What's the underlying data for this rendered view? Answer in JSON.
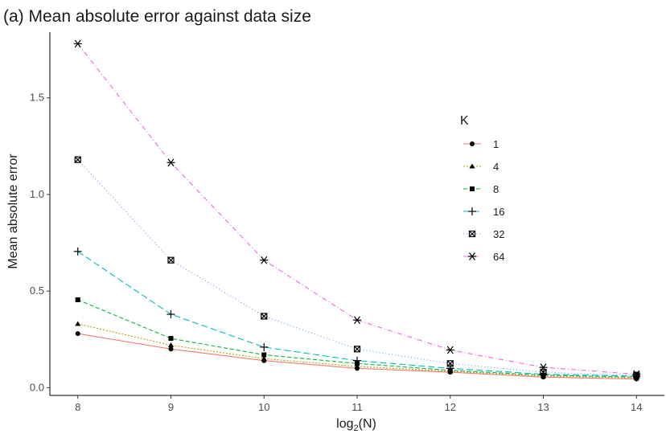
{
  "chart_data": {
    "type": "line",
    "title": "(a) Mean absolute error against data size",
    "xlabel_main": "log",
    "xlabel_sub": "2",
    "xlabel_rest": "(N)",
    "ylabel": "Mean absolute error",
    "x": [
      8,
      9,
      10,
      11,
      12,
      13,
      14
    ],
    "xlim": [
      7.7,
      14.3
    ],
    "ylim": [
      -0.04,
      1.84
    ],
    "yticks": [
      0.0,
      0.5,
      1.0,
      1.5
    ],
    "ytick_labels": [
      "0.0",
      "0.5",
      "1.0",
      "1.5"
    ],
    "xtick_labels": [
      "8",
      "9",
      "10",
      "11",
      "12",
      "13",
      "14"
    ],
    "grid": false,
    "legend": {
      "title": "K",
      "position": "right"
    },
    "series": [
      {
        "name": "1",
        "color": "#F8766D",
        "dash": "solid",
        "marker": "circle",
        "values": [
          0.28,
          0.2,
          0.14,
          0.1,
          0.08,
          0.055,
          0.045
        ]
      },
      {
        "name": "4",
        "color": "#B79F00",
        "dash": "dotted",
        "marker": "triangle",
        "values": [
          0.33,
          0.22,
          0.15,
          0.11,
          0.085,
          0.06,
          0.05
        ]
      },
      {
        "name": "8",
        "color": "#00BA38",
        "dash": "dashed",
        "marker": "square",
        "values": [
          0.455,
          0.255,
          0.17,
          0.125,
          0.09,
          0.065,
          0.055
        ]
      },
      {
        "name": "16",
        "color": "#00BFC4",
        "dash": "longdash",
        "marker": "plus",
        "values": [
          0.705,
          0.38,
          0.21,
          0.14,
          0.1,
          0.07,
          0.06
        ]
      },
      {
        "name": "32",
        "color": "#619CFF",
        "dash": "dotted2",
        "marker": "boxcross",
        "values": [
          1.18,
          0.66,
          0.37,
          0.2,
          0.125,
          0.08,
          0.065
        ]
      },
      {
        "name": "64",
        "color": "#F564E3",
        "dash": "dotdash",
        "marker": "asterisk",
        "values": [
          1.78,
          1.165,
          0.66,
          0.35,
          0.195,
          0.105,
          0.07
        ]
      }
    ]
  }
}
